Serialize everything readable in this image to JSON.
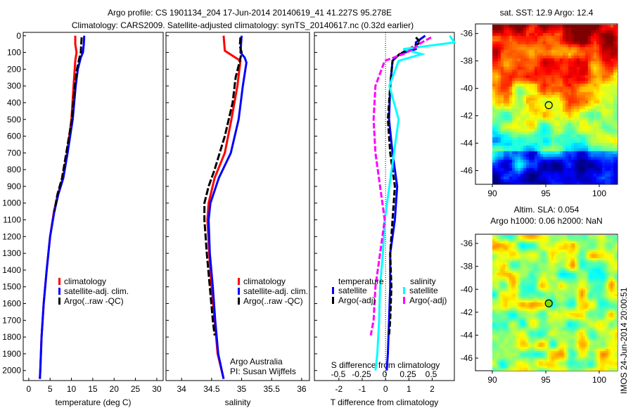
{
  "title": {
    "line1": "Argo profile: CS 1901134_204 17-Jun-2014 20140619_41 41.227S 95.278E",
    "line2": "Climatology: CARS2009. Satellite-adjusted climatology: synTS_20140617.nc (0.32d earlier)"
  },
  "chart_data": [
    {
      "type": "line",
      "name": "temperature-profile",
      "xlabel": "temperature (deg C)",
      "xlim": [
        -1.3,
        31.5
      ],
      "ylim": [
        2060,
        -20
      ],
      "xticks": [
        "0",
        "5",
        "10",
        "15",
        "20",
        "25",
        "30"
      ],
      "yticks": [
        "0",
        "100",
        "200",
        "300",
        "400",
        "500",
        "600",
        "700",
        "800",
        "900",
        "1000",
        "1100",
        "1200",
        "1300",
        "1400",
        "1500",
        "1600",
        "1700",
        "1800",
        "1900",
        "2000"
      ],
      "legend": [
        "climatology",
        "satellite-adj. clim.",
        "Argo(..raw -QC)"
      ],
      "series": [
        {
          "name": "climatology",
          "color": "#ff0000",
          "depth": [
            0,
            50,
            100,
            150,
            300,
            500,
            700,
            850,
            950,
            1050,
            1200,
            1400,
            1600,
            1800,
            2000,
            2050
          ],
          "values": [
            10.9,
            10.9,
            11.2,
            10.9,
            10.5,
            10,
            9,
            8,
            6.8,
            5.9,
            5,
            4.2,
            3.5,
            3,
            2.7,
            2.6
          ]
        },
        {
          "name": "satellite-adj. clim.",
          "color": "#0000ff",
          "depth": [
            0,
            50,
            100,
            130,
            200,
            300,
            500,
            700,
            850,
            950,
            1050,
            1200,
            1400,
            1600,
            1800,
            2000,
            2050
          ],
          "values": [
            13,
            12.9,
            12.7,
            12.2,
            11.5,
            11,
            10.3,
            9.1,
            8.1,
            6.9,
            6,
            5,
            4.2,
            3.5,
            3,
            2.7,
            2.6
          ]
        },
        {
          "name": "Argo(..raw -QC)",
          "color": "#000000",
          "depth": [
            10,
            50,
            100,
            140,
            200,
            300,
            500,
            700,
            850,
            950,
            1050
          ],
          "values": [
            12.4,
            12.3,
            12.2,
            11.8,
            11.3,
            10.8,
            10.1,
            8.8,
            7.8,
            6.7,
            6
          ]
        }
      ]
    },
    {
      "type": "line",
      "name": "salinity-profile",
      "xlabel": "salinity",
      "xlim": [
        33.74,
        36.13
      ],
      "ylim": [
        2060,
        -20
      ],
      "xticks": [
        "34",
        "34.5",
        "35",
        "35.5",
        "36"
      ],
      "legend": [
        "climatology",
        "satellite-adj. clim.",
        "Argo(..raw -QC)"
      ],
      "annotation": [
        "Argo Australia",
        "PI: Susan Wijffels"
      ],
      "series": [
        {
          "name": "climatology",
          "color": "#ff0000",
          "depth": [
            0,
            90,
            120,
            150,
            300,
            500,
            700,
            850,
            1000,
            1100,
            1300,
            1500,
            1700,
            1900,
            2050
          ],
          "values": [
            34.7,
            34.72,
            34.85,
            34.98,
            34.93,
            34.83,
            34.72,
            34.55,
            34.45,
            34.43,
            34.46,
            34.5,
            34.55,
            34.6,
            34.7
          ]
        },
        {
          "name": "satellite-adj. clim.",
          "color": "#0000ff",
          "depth": [
            0,
            100,
            130,
            160,
            300,
            500,
            700,
            850,
            1000,
            1100,
            1300,
            1500,
            1700,
            1900,
            2050
          ],
          "values": [
            35.0,
            34.98,
            35.05,
            35.08,
            35.02,
            34.95,
            34.82,
            34.62,
            34.48,
            34.45,
            34.47,
            34.52,
            34.56,
            34.61,
            34.7
          ]
        },
        {
          "name": "Argo(..raw -QC)",
          "color": "#000000",
          "depth": [
            10,
            60,
            100,
            150,
            250,
            400,
            600,
            800,
            900,
            1000,
            1100,
            1300,
            1500,
            1700,
            1790
          ],
          "values": [
            34.98,
            34.97,
            35.0,
            34.97,
            34.9,
            34.85,
            34.72,
            34.55,
            34.45,
            34.38,
            34.38,
            34.42,
            34.47,
            34.52,
            34.55
          ]
        }
      ]
    },
    {
      "type": "line",
      "name": "difference-profile",
      "xlabel": "T difference from climatology",
      "xlabel_top": "S difference from climatology",
      "xlim": [
        -3.05,
        2.95
      ],
      "xticks": [
        "-2",
        "-1",
        "0",
        "1",
        "2"
      ],
      "sticks": [
        "-0.5",
        "-0.25",
        "0",
        "0.25",
        "0.5"
      ],
      "legend_temperature_title": "temperature",
      "legend_salinity_title": "salinity",
      "legend": [
        "satellite",
        "Argo(-adj)",
        "satellite",
        "Argo(-adj)"
      ],
      "series": [
        {
          "name": "T satellite",
          "color": "#0000ff",
          "depth": [
            0,
            40,
            80,
            110,
            150,
            300,
            500,
            700,
            900,
            1100,
            1300,
            1500,
            1700,
            1900,
            2000
          ],
          "values": [
            1.7,
            1.3,
            1.3,
            0.6,
            0.3,
            0.2,
            0.15,
            0.3,
            0.5,
            0.4,
            0.2,
            0.2,
            0.15,
            0.1,
            0.05
          ]
        },
        {
          "name": "T Argo(-adj)",
          "color": "#000000",
          "depth": [
            10,
            40,
            80,
            110,
            150,
            300,
            500,
            700,
            900,
            1100,
            1300,
            1500,
            1700,
            1790
          ],
          "values": [
            1.3,
            1.5,
            1.0,
            0.6,
            0.3,
            0.2,
            0.1,
            0.2,
            0.4,
            0.3,
            0.2,
            0.25,
            0.2,
            0.15
          ]
        },
        {
          "name": "S satellite",
          "color": "#00ffff",
          "depth": [
            0,
            40,
            80,
            110,
            150,
            300,
            500,
            700,
            900,
            1100,
            1300,
            1500,
            1700,
            1900,
            2000
          ],
          "values": [
            0.7,
            0.75,
            0.2,
            0.4,
            0.15,
            0.05,
            0.15,
            0.1,
            0.05,
            0.0,
            -0.02,
            -0.05,
            -0.06,
            -0.08,
            -0.1
          ]
        },
        {
          "name": "S Argo(-adj)",
          "color": "#ff00ff",
          "depth": [
            10,
            40,
            80,
            110,
            150,
            300,
            500,
            700,
            900,
            1100,
            1300,
            1500,
            1700,
            1790
          ],
          "values": [
            0.5,
            0.4,
            0.3,
            0.2,
            0.0,
            -0.1,
            -0.12,
            -0.1,
            -0.05,
            0.0,
            -0.05,
            -0.1,
            -0.12,
            -0.15
          ]
        }
      ]
    },
    {
      "type": "heatmap",
      "name": "sst-map",
      "title": "sat. SST: 12.9 Argo: 12.4",
      "xticks": [
        "90",
        "95",
        "100"
      ],
      "yticks": [
        "-36",
        "-38",
        "-40",
        "-42",
        "-44",
        "-46"
      ],
      "marker": {
        "lon": 95.278,
        "lat": -41.227
      }
    },
    {
      "type": "heatmap",
      "name": "sla-map",
      "title_line1": "Altim. SLA: 0.054",
      "title_line2": "Argo h1000: 0.06 h2000: NaN",
      "xticks": [
        "90",
        "95",
        "100"
      ],
      "yticks": [
        "-36",
        "-38",
        "-40",
        "-42",
        "-44",
        "-46"
      ],
      "marker": {
        "lon": 95.278,
        "lat": -41.227
      }
    }
  ],
  "footer": {
    "stamp": "IMOS 24-Jun-2014 20:00:51"
  }
}
